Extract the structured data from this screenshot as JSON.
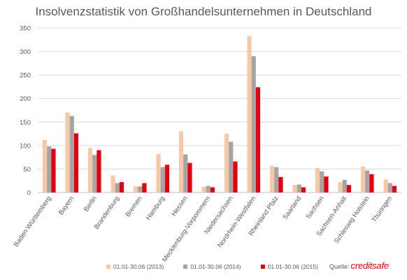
{
  "chart_data": {
    "type": "bar",
    "title": "Insolvenzstatistik von Großhandelsunternehmen in Deutschland",
    "categories": [
      "Baden-Württemberg",
      "Bayern",
      "Berlin",
      "Brandenburg",
      "Bremen",
      "Hamburg",
      "Hessen",
      "Mecklenburg-Vorpommern",
      "Niedersachsen",
      "Nordrhein-Westfalen",
      "Rheinland Pfalz",
      "Saarland",
      "Sachsen",
      "Sachsen-Anhalt",
      "Schleswig Holstein",
      "Thüringen"
    ],
    "series": [
      {
        "name": "01.01-30.06 (2013)",
        "color": "#f5c9a6",
        "values": [
          112,
          170,
          95,
          36,
          13,
          82,
          130,
          12,
          125,
          333,
          57,
          16,
          52,
          22,
          55,
          28
        ]
      },
      {
        "name": "01.01-30.06 (2014)",
        "color": "#a5a5a5",
        "values": [
          98,
          163,
          80,
          20,
          13,
          54,
          81,
          14,
          108,
          290,
          54,
          17,
          45,
          27,
          47,
          20
        ]
      },
      {
        "name": "01.01-30.06 (2015)",
        "color": "#e3000f",
        "values": [
          93,
          126,
          90,
          22,
          20,
          59,
          63,
          11,
          66,
          224,
          33,
          11,
          34,
          16,
          39,
          14
        ]
      }
    ],
    "ylim": [
      0,
      350
    ],
    "yticks": [
      0,
      50,
      100,
      150,
      200,
      250,
      300,
      350
    ],
    "xlabel": "",
    "ylabel": "",
    "grid": true,
    "legend_position": "bottom"
  },
  "source": {
    "label": "Quelle:",
    "brand": "creditsafe"
  }
}
